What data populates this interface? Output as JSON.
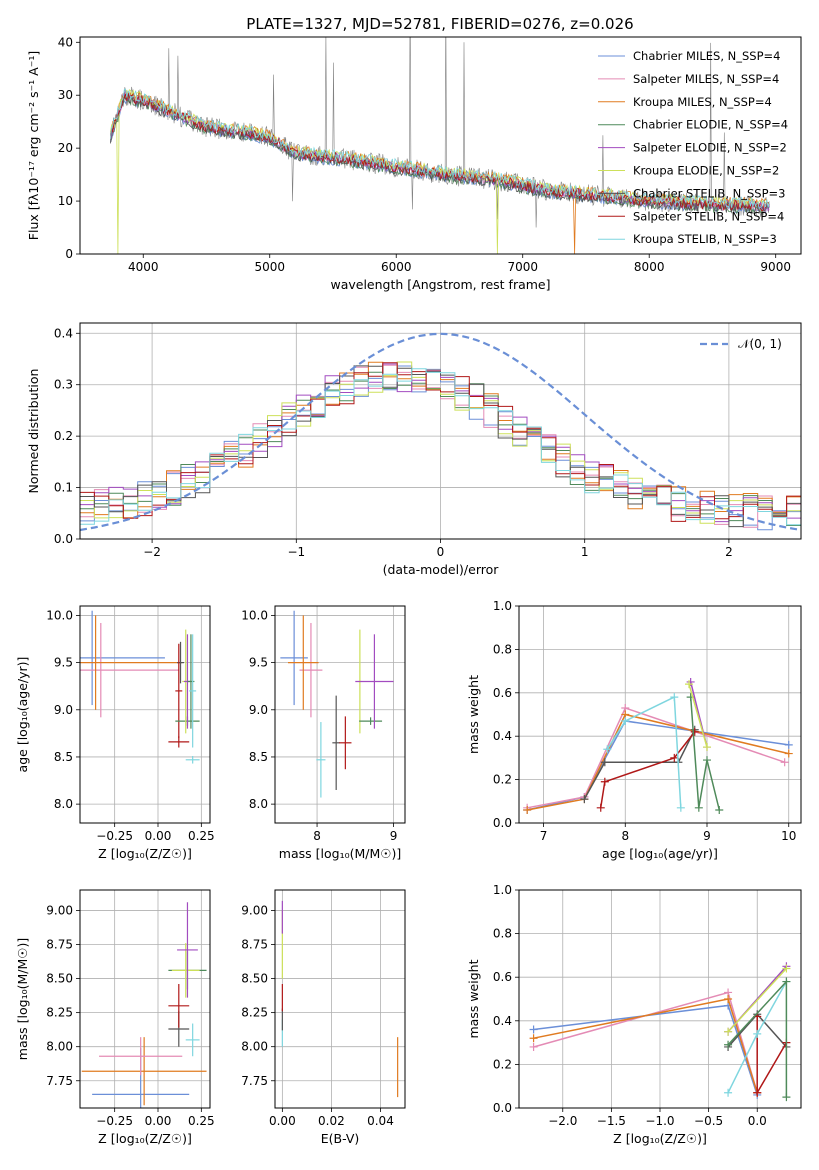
{
  "figure_title": "PLATE=1327, MJD=52781, FIBERID=0276, z=0.026",
  "colors": {
    "chabrier_miles": "#6b8fd8",
    "salpeter_miles": "#e48bb5",
    "kroupa_miles": "#e07b20",
    "chabrier_elodie": "#4f8a5a",
    "salpeter_elodie": "#a24cc0",
    "kroupa_elodie": "#cde05a",
    "chabrier_stelib": "#555555",
    "salpeter_stelib": "#b01818",
    "kroupa_stelib": "#7fd6df",
    "gaussian": "#6a8fd6"
  },
  "chart_data": [
    {
      "id": "spectrum",
      "type": "line",
      "title": "PLATE=1327, MJD=52781, FIBERID=0276, z=0.026",
      "xlabel": "wavelength [Angstrom, rest frame]",
      "ylabel": "Flux [fλ10⁻¹⁷ erg cm⁻² s⁻¹ A⁻¹]",
      "xlim": [
        3500,
        9200
      ],
      "ylim": [
        0,
        41
      ],
      "xticks": [
        "4000",
        "5000",
        "6000",
        "7000",
        "8000",
        "9000"
      ],
      "yticks": [
        "0",
        "10",
        "20",
        "30",
        "40"
      ],
      "legend_position": "upper-right",
      "legend": [
        "Chabrier MILES, N_SSP=4",
        "Salpeter MILES, N_SSP=4",
        "Kroupa MILES, N_SSP=4",
        "Chabrier ELODIE, N_SSP=4",
        "Salpeter ELODIE, N_SSP=2",
        "Kroupa ELODIE, N_SSP=2",
        "Chabrier STELIB, N_SSP=3",
        "Salpeter STELIB, N_SSP=4",
        "Kroupa STELIB, N_SSP=3"
      ],
      "continuum": {
        "x": [
          3750,
          3850,
          4000,
          4200,
          4500,
          4800,
          5000,
          5200,
          5600,
          6000,
          6400,
          6800,
          7200,
          7600,
          8000,
          8400,
          8900
        ],
        "y": [
          23,
          30,
          29,
          27,
          24,
          23,
          22,
          19,
          18,
          16.5,
          15,
          14,
          12,
          11,
          10,
          9.5,
          9
        ]
      }
    },
    {
      "id": "residuals",
      "type": "bar",
      "xlabel": "(data-model)/error",
      "ylabel": "Normed distribution",
      "xlim": [
        -2.5,
        2.5
      ],
      "ylim": [
        0,
        0.42
      ],
      "xticks": [
        "−2",
        "−1",
        "0",
        "1",
        "2"
      ],
      "yticks": [
        "0.0",
        "0.1",
        "0.2",
        "0.3",
        "0.4"
      ],
      "legend_position": "upper-right",
      "legend": [
        "𝒩(0, 1)"
      ],
      "gaussian": {
        "mu": 0,
        "sigma": 1
      }
    },
    {
      "id": "age_vs_Z",
      "type": "scatter",
      "xlabel": "Z [log₁₀(Z/Z☉)]",
      "ylabel": "age  [log₁₀(age/yr)]",
      "xlim": [
        -0.45,
        0.3
      ],
      "ylim": [
        7.8,
        10.1
      ],
      "xticks": [
        "−0.25",
        "0.00",
        "0.25"
      ],
      "yticks": [
        "8.0",
        "8.5",
        "9.0",
        "9.5",
        "10.0"
      ],
      "points": [
        {
          "s": "chabrier_miles",
          "x": -0.38,
          "y": 9.55,
          "xerr": 0.42,
          "yerr": 0.5
        },
        {
          "s": "salpeter_miles",
          "x": -0.33,
          "y": 9.42,
          "xerr": 0.45,
          "yerr": 0.5
        },
        {
          "s": "kroupa_miles",
          "x": -0.36,
          "y": 9.5,
          "xerr": 0.5,
          "yerr": 0.5
        },
        {
          "s": "salpeter_stelib",
          "x": 0.12,
          "y": 8.66,
          "xerr": 0.06,
          "yerr": 0.06
        },
        {
          "s": "chabrier_stelib",
          "x": 0.13,
          "y": 9.5,
          "xerr": 0.02,
          "yerr": 0.22
        },
        {
          "s": "salpeter_stelib",
          "x": 0.12,
          "y": 9.2,
          "xerr": 0.02,
          "yerr": 0.5
        },
        {
          "s": "chabrier_elodie",
          "x": 0.17,
          "y": 8.88,
          "xerr": 0.07,
          "yerr": 0.05
        },
        {
          "s": "kroupa_elodie",
          "x": 0.16,
          "y": 9.3,
          "xerr": 0.02,
          "yerr": 0.55
        },
        {
          "s": "salpeter_elodie",
          "x": 0.17,
          "y": 9.3,
          "xerr": 0.02,
          "yerr": 0.5
        },
        {
          "s": "chabrier_elodie",
          "x": 0.19,
          "y": 9.3,
          "xerr": 0.02,
          "yerr": 0.5
        },
        {
          "s": "kroupa_stelib",
          "x": 0.2,
          "y": 8.47,
          "xerr": 0.04,
          "yerr": 0.04
        },
        {
          "s": "kroupa_stelib",
          "x": 0.2,
          "y": 9.2,
          "xerr": 0.02,
          "yerr": 0.6
        }
      ]
    },
    {
      "id": "age_vs_mass",
      "type": "scatter",
      "xlabel": "mass [log₁₀(M/M☉)]",
      "ylabel": "",
      "xlim": [
        7.45,
        9.15
      ],
      "ylim": [
        7.8,
        10.1
      ],
      "xticks": [
        "8",
        "9"
      ],
      "yticks": [
        "8.0",
        "8.5",
        "9.0",
        "9.5",
        "10.0"
      ],
      "points": [
        {
          "s": "chabrier_miles",
          "x": 7.7,
          "y": 9.55,
          "xerr": 0.18,
          "yerr": 0.5
        },
        {
          "s": "salpeter_miles",
          "x": 7.92,
          "y": 9.42,
          "xerr": 0.15,
          "yerr": 0.5
        },
        {
          "s": "kroupa_miles",
          "x": 7.82,
          "y": 9.5,
          "xerr": 0.2,
          "yerr": 0.5
        },
        {
          "s": "kroupa_stelib",
          "x": 8.05,
          "y": 8.47,
          "xerr": 0.06,
          "yerr": 0.4
        },
        {
          "s": "chabrier_stelib",
          "x": 8.25,
          "y": 8.65,
          "xerr": 0.05,
          "yerr": 0.5
        },
        {
          "s": "salpeter_stelib",
          "x": 8.37,
          "y": 8.65,
          "xerr": 0.08,
          "yerr": 0.28
        },
        {
          "s": "kroupa_elodie",
          "x": 8.56,
          "y": 9.3,
          "xerr": 0.02,
          "yerr": 0.55
        },
        {
          "s": "chabrier_elodie",
          "x": 8.7,
          "y": 8.88,
          "xerr": 0.15,
          "yerr": 0.04
        },
        {
          "s": "salpeter_elodie",
          "x": 8.75,
          "y": 9.3,
          "xerr": 0.25,
          "yerr": 0.5
        }
      ]
    },
    {
      "id": "weight_vs_age",
      "type": "line",
      "xlabel": "age  [log₁₀(age/yr)]",
      "ylabel": "mass weight",
      "xlim": [
        6.7,
        10.15
      ],
      "ylim": [
        0,
        1
      ],
      "xticks": [
        "7",
        "8",
        "9",
        "10"
      ],
      "yticks": [
        "0.0",
        "0.2",
        "0.4",
        "0.6",
        "0.8",
        "1.0"
      ],
      "series": [
        {
          "s": "chabrier_miles",
          "x": [
            6.8,
            7.5,
            8.0,
            10.0
          ],
          "y": [
            0.06,
            0.12,
            0.47,
            0.36
          ]
        },
        {
          "s": "salpeter_miles",
          "x": [
            6.8,
            7.5,
            8.0,
            9.95
          ],
          "y": [
            0.07,
            0.12,
            0.53,
            0.28
          ]
        },
        {
          "s": "kroupa_miles",
          "x": [
            6.8,
            7.5,
            8.0,
            10.0
          ],
          "y": [
            0.06,
            0.11,
            0.5,
            0.32
          ]
        },
        {
          "s": "chabrier_stelib",
          "x": [
            7.5,
            7.75,
            8.65,
            8.85
          ],
          "y": [
            0.11,
            0.28,
            0.28,
            0.43
          ]
        },
        {
          "s": "salpeter_stelib",
          "x": [
            7.7,
            7.75,
            8.6,
            8.85
          ],
          "y": [
            0.07,
            0.19,
            0.3,
            0.42
          ]
        },
        {
          "s": "kroupa_stelib",
          "x": [
            7.78,
            8.0,
            8.6,
            8.68
          ],
          "y": [
            0.34,
            0.47,
            0.58,
            0.07
          ]
        },
        {
          "s": "chabrier_elodie",
          "x": [
            8.8,
            8.9,
            9.0,
            9.15
          ],
          "y": [
            0.58,
            0.07,
            0.29,
            0.06
          ]
        },
        {
          "s": "salpeter_elodie",
          "x": [
            8.8,
            9.0
          ],
          "y": [
            0.65,
            0.35
          ]
        },
        {
          "s": "kroupa_elodie",
          "x": [
            8.78,
            9.0
          ],
          "y": [
            0.64,
            0.35
          ]
        }
      ]
    },
    {
      "id": "mass_vs_Z",
      "type": "scatter",
      "xlabel": "Z [log₁₀(Z/Z☉)]",
      "ylabel": "mass [log₁₀(M/M☉)]",
      "xlim": [
        -0.45,
        0.3
      ],
      "ylim": [
        7.55,
        9.15
      ],
      "xticks": [
        "−0.25",
        "0.00",
        "0.25"
      ],
      "yticks": [
        "7.75",
        "8.00",
        "8.25",
        "8.50",
        "8.75",
        "9.00"
      ],
      "points": [
        {
          "s": "chabrier_miles",
          "x": -0.1,
          "y": 7.65,
          "xerr": 0.28,
          "yerr": 0.34
        },
        {
          "s": "kroupa_miles",
          "x": -0.08,
          "y": 7.82,
          "xerr": 0.36,
          "yerr": 0.25
        },
        {
          "s": "salpeter_miles",
          "x": -0.1,
          "y": 7.93,
          "xerr": 0.24,
          "yerr": 0.14
        },
        {
          "s": "chabrier_stelib",
          "x": 0.12,
          "y": 8.13,
          "xerr": 0.06,
          "yerr": 0.13
        },
        {
          "s": "salpeter_stelib",
          "x": 0.12,
          "y": 8.3,
          "xerr": 0.06,
          "yerr": 0.16
        },
        {
          "s": "kroupa_stelib",
          "x": 0.2,
          "y": 8.05,
          "xerr": 0.04,
          "yerr": 0.12
        },
        {
          "s": "chabrier_elodie",
          "x": 0.17,
          "y": 8.56,
          "xerr": 0.11,
          "yerr": 0.14
        },
        {
          "s": "kroupa_elodie",
          "x": 0.16,
          "y": 8.56,
          "xerr": 0.08,
          "yerr": 0.2
        },
        {
          "s": "salpeter_elodie",
          "x": 0.17,
          "y": 8.71,
          "xerr": 0.06,
          "yerr": 0.35
        }
      ]
    },
    {
      "id": "mass_vs_ebv",
      "type": "scatter",
      "xlabel": "E(B-V)",
      "ylabel": "",
      "xlim": [
        -0.003,
        0.05
      ],
      "ylim": [
        7.55,
        9.15
      ],
      "xticks": [
        "0.00",
        "0.02",
        "0.04"
      ],
      "yticks": [
        "7.75",
        "8.00",
        "8.25",
        "8.50",
        "8.75",
        "9.00"
      ],
      "points": [
        {
          "s": "kroupa_stelib",
          "x": 0.0,
          "y": 8.1,
          "xerr": 0,
          "yerr": 0.1
        },
        {
          "s": "chabrier_stelib",
          "x": 0.0,
          "y": 8.2,
          "xerr": 0,
          "yerr": 0.08
        },
        {
          "s": "salpeter_stelib",
          "x": 0.0,
          "y": 8.36,
          "xerr": 0,
          "yerr": 0.1
        },
        {
          "s": "kroupa_elodie",
          "x": 0.0,
          "y": 8.75,
          "xerr": 0,
          "yerr": 0.25
        },
        {
          "s": "salpeter_elodie",
          "x": 0.0,
          "y": 8.95,
          "xerr": 0,
          "yerr": 0.12
        },
        {
          "s": "kroupa_miles",
          "x": 0.047,
          "y": 7.85,
          "xerr": 0,
          "yerr": 0.22
        }
      ]
    },
    {
      "id": "weight_vs_Z",
      "type": "line",
      "xlabel": "Z [log₁₀(Z/Z☉)]",
      "ylabel": "mass weight",
      "xlim": [
        -2.45,
        0.45
      ],
      "ylim": [
        0,
        1
      ],
      "xticks": [
        "−2.0",
        "−1.5",
        "−1.0",
        "−0.5",
        "0.0"
      ],
      "yticks": [
        "0.0",
        "0.2",
        "0.4",
        "0.6",
        "0.8",
        "1.0"
      ],
      "series": [
        {
          "s": "chabrier_miles",
          "x": [
            -2.3,
            -0.3,
            0.0
          ],
          "y": [
            0.36,
            0.47,
            0.06
          ]
        },
        {
          "s": "salpeter_miles",
          "x": [
            -2.3,
            -0.3,
            0.0
          ],
          "y": [
            0.28,
            0.53,
            0.07
          ]
        },
        {
          "s": "kroupa_miles",
          "x": [
            -2.3,
            -0.3,
            0.0
          ],
          "y": [
            0.32,
            0.5,
            0.07
          ]
        },
        {
          "s": "chabrier_stelib",
          "x": [
            -0.3,
            0.0,
            0.3
          ],
          "y": [
            0.28,
            0.43,
            0.28
          ]
        },
        {
          "s": "salpeter_stelib",
          "x": [
            0.0,
            0.0,
            0.3
          ],
          "y": [
            0.42,
            0.07,
            0.3
          ]
        },
        {
          "s": "kroupa_stelib",
          "x": [
            -0.3,
            0.0,
            0.3
          ],
          "y": [
            0.07,
            0.34,
            0.58
          ]
        },
        {
          "s": "chabrier_elodie",
          "x": [
            -0.3,
            0.3,
            0.3
          ],
          "y": [
            0.29,
            0.58,
            0.05
          ]
        },
        {
          "s": "salpeter_elodie",
          "x": [
            -0.3,
            0.3
          ],
          "y": [
            0.35,
            0.65
          ]
        },
        {
          "s": "kroupa_elodie",
          "x": [
            -0.3,
            0.3
          ],
          "y": [
            0.35,
            0.64
          ]
        }
      ]
    }
  ]
}
